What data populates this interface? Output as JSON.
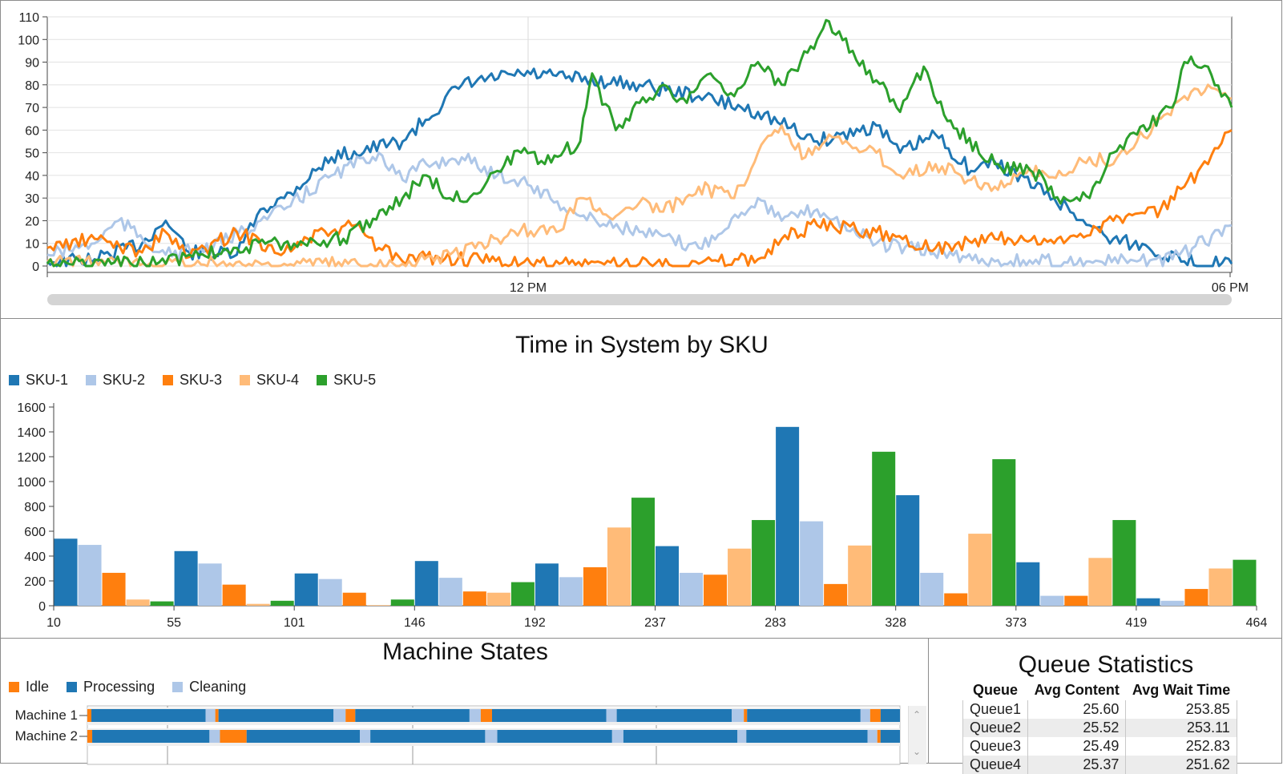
{
  "colors": {
    "SKU-1": "#1f77b4",
    "SKU-2": "#aec7e8",
    "SKU-3": "#ff7f0e",
    "SKU-4": "#ffbb78",
    "SKU-5": "#2ca02c",
    "idle": "#ff7f0e",
    "processing": "#1f77b4",
    "cleaning": "#aec7e8"
  },
  "line_chart": {
    "chart_data": {
      "type": "line",
      "title": "",
      "x_tick_labels": [
        "12 PM",
        "06 PM"
      ],
      "ylim": [
        0,
        110
      ],
      "y_ticks": [
        0,
        10,
        20,
        30,
        40,
        50,
        60,
        70,
        80,
        90,
        100,
        110
      ],
      "series": [
        {
          "name": "SKU-1",
          "x": [
            0,
            4,
            8,
            10,
            12,
            16,
            18,
            20,
            24,
            30,
            35,
            40,
            50,
            55,
            60,
            65,
            70,
            72,
            75,
            78,
            80,
            85,
            88,
            90,
            93,
            96,
            100
          ],
          "y": [
            2,
            3,
            10,
            20,
            6,
            5,
            25,
            30,
            48,
            55,
            80,
            85,
            80,
            75,
            68,
            55,
            62,
            50,
            58,
            42,
            46,
            30,
            18,
            12,
            8,
            2,
            1
          ]
        },
        {
          "name": "SKU-2",
          "x": [
            0,
            4,
            6,
            10,
            14,
            18,
            20,
            24,
            28,
            30,
            32,
            35,
            38,
            40,
            45,
            50,
            55,
            60,
            62,
            65,
            70,
            80,
            88,
            92,
            95,
            100
          ],
          "y": [
            5,
            10,
            20,
            5,
            8,
            20,
            25,
            40,
            50,
            38,
            45,
            48,
            40,
            38,
            22,
            15,
            8,
            30,
            20,
            25,
            10,
            2,
            2,
            2,
            3,
            18
          ]
        },
        {
          "name": "SKU-3",
          "x": [
            0,
            4,
            8,
            10,
            12,
            16,
            20,
            22,
            24,
            26,
            28,
            30,
            32,
            40,
            50,
            55,
            60,
            62,
            65,
            70,
            75,
            80,
            85,
            90,
            94,
            96,
            98,
            100
          ],
          "y": [
            8,
            12,
            6,
            15,
            4,
            15,
            6,
            12,
            15,
            18,
            8,
            2,
            4,
            1,
            1,
            1,
            3,
            12,
            18,
            15,
            8,
            12,
            10,
            20,
            25,
            35,
            45,
            60
          ]
        },
        {
          "name": "SKU-4",
          "x": [
            0,
            10,
            20,
            30,
            34,
            38,
            40,
            43,
            45,
            48,
            50,
            52,
            55,
            58,
            60,
            62,
            64,
            66,
            68,
            70,
            72,
            75,
            78,
            80,
            84,
            86,
            88,
            90,
            92,
            94,
            96,
            98,
            100
          ],
          "y": [
            2,
            1,
            1,
            1,
            5,
            12,
            16,
            15,
            30,
            22,
            28,
            24,
            35,
            30,
            50,
            62,
            48,
            58,
            52,
            50,
            40,
            45,
            38,
            35,
            42,
            40,
            48,
            45,
            55,
            65,
            75,
            80,
            74
          ]
        },
        {
          "name": "SKU-5",
          "x": [
            0,
            10,
            12,
            16,
            20,
            25,
            30,
            32,
            34,
            36,
            38,
            40,
            42,
            45,
            46,
            48,
            50,
            52,
            54,
            56,
            58,
            60,
            62,
            65,
            66,
            68,
            70,
            72,
            74,
            76,
            80,
            84,
            85,
            88,
            90,
            92,
            95,
            96,
            98,
            100
          ],
          "y": [
            1,
            1,
            5,
            8,
            10,
            12,
            30,
            40,
            30,
            32,
            42,
            50,
            45,
            55,
            85,
            60,
            72,
            80,
            72,
            85,
            75,
            90,
            80,
            100,
            108,
            95,
            82,
            68,
            88,
            64,
            45,
            40,
            30,
            30,
            50,
            58,
            70,
            90,
            88,
            70
          ]
        }
      ]
    }
  },
  "bar_chart": {
    "title": "Time in System by SKU",
    "legend": [
      "SKU-1",
      "SKU-2",
      "SKU-3",
      "SKU-4",
      "SKU-5"
    ],
    "chart_data": {
      "type": "bar",
      "title": "Time in System by SKU",
      "xlabel": "",
      "ylabel": "",
      "ylim": [
        0,
        1600
      ],
      "y_ticks": [
        0,
        200,
        400,
        600,
        800,
        1000,
        1200,
        1400,
        1600
      ],
      "x_tick_labels": [
        "10",
        "55",
        "101",
        "146",
        "192",
        "237",
        "283",
        "328",
        "373",
        "419",
        "464"
      ],
      "series_order": [
        "SKU-1",
        "SKU-2",
        "SKU-3",
        "SKU-4",
        "SKU-5"
      ],
      "bars": [
        {
          "sku": "SKU-1",
          "value": 540
        },
        {
          "sku": "SKU-2",
          "value": 490
        },
        {
          "sku": "SKU-3",
          "value": 265
        },
        {
          "sku": "SKU-4",
          "value": 50
        },
        {
          "sku": "SKU-5",
          "value": 35
        },
        {
          "sku": "SKU-1",
          "value": 440
        },
        {
          "sku": "SKU-2",
          "value": 340
        },
        {
          "sku": "SKU-3",
          "value": 170
        },
        {
          "sku": "SKU-4",
          "value": 15
        },
        {
          "sku": "SKU-5",
          "value": 40
        },
        {
          "sku": "SKU-1",
          "value": 260
        },
        {
          "sku": "SKU-2",
          "value": 215
        },
        {
          "sku": "SKU-3",
          "value": 105
        },
        {
          "sku": "SKU-4",
          "value": 5
        },
        {
          "sku": "SKU-5",
          "value": 50
        },
        {
          "sku": "SKU-1",
          "value": 360
        },
        {
          "sku": "SKU-2",
          "value": 225
        },
        {
          "sku": "SKU-3",
          "value": 115
        },
        {
          "sku": "SKU-4",
          "value": 105
        },
        {
          "sku": "SKU-5",
          "value": 190
        },
        {
          "sku": "SKU-1",
          "value": 340
        },
        {
          "sku": "SKU-2",
          "value": 230
        },
        {
          "sku": "SKU-3",
          "value": 310
        },
        {
          "sku": "SKU-4",
          "value": 630
        },
        {
          "sku": "SKU-5",
          "value": 870
        },
        {
          "sku": "SKU-1",
          "value": 480
        },
        {
          "sku": "SKU-2",
          "value": 265
        },
        {
          "sku": "SKU-3",
          "value": 250
        },
        {
          "sku": "SKU-4",
          "value": 460
        },
        {
          "sku": "SKU-5",
          "value": 690
        },
        {
          "sku": "SKU-1",
          "value": 1440
        },
        {
          "sku": "SKU-2",
          "value": 680
        },
        {
          "sku": "SKU-3",
          "value": 175
        },
        {
          "sku": "SKU-4",
          "value": 485
        },
        {
          "sku": "SKU-5",
          "value": 1240
        },
        {
          "sku": "SKU-1",
          "value": 890
        },
        {
          "sku": "SKU-2",
          "value": 265
        },
        {
          "sku": "SKU-3",
          "value": 100
        },
        {
          "sku": "SKU-4",
          "value": 580
        },
        {
          "sku": "SKU-5",
          "value": 1180
        },
        {
          "sku": "SKU-1",
          "value": 350
        },
        {
          "sku": "SKU-2",
          "value": 80
        },
        {
          "sku": "SKU-3",
          "value": 80
        },
        {
          "sku": "SKU-4",
          "value": 385
        },
        {
          "sku": "SKU-5",
          "value": 690
        },
        {
          "sku": "SKU-1",
          "value": 60
        },
        {
          "sku": "SKU-2",
          "value": 40
        },
        {
          "sku": "SKU-3",
          "value": 135
        },
        {
          "sku": "SKU-4",
          "value": 300
        },
        {
          "sku": "SKU-5",
          "value": 370
        }
      ]
    }
  },
  "machine_states": {
    "title": "Machine States",
    "legend": [
      {
        "label": "Idle",
        "key": "idle"
      },
      {
        "label": "Processing",
        "key": "processing"
      },
      {
        "label": "Cleaning",
        "key": "cleaning"
      }
    ],
    "machines": [
      {
        "name": "Machine 1",
        "segments": [
          {
            "s": "idle",
            "d": 0.5
          },
          {
            "s": "processing",
            "d": 14.2
          },
          {
            "s": "cleaning",
            "d": 1.2
          },
          {
            "s": "idle",
            "d": 0.4
          },
          {
            "s": "processing",
            "d": 14.3
          },
          {
            "s": "cleaning",
            "d": 1.5
          },
          {
            "s": "idle",
            "d": 1.2
          },
          {
            "s": "processing",
            "d": 14.2
          },
          {
            "s": "cleaning",
            "d": 1.4
          },
          {
            "s": "idle",
            "d": 1.4
          },
          {
            "s": "processing",
            "d": 14.2
          },
          {
            "s": "cleaning",
            "d": 1.3
          },
          {
            "s": "processing",
            "d": 14.3
          },
          {
            "s": "cleaning",
            "d": 1.5
          },
          {
            "s": "idle",
            "d": 0.4
          },
          {
            "s": "processing",
            "d": 14.1
          },
          {
            "s": "cleaning",
            "d": 1.2
          },
          {
            "s": "idle",
            "d": 1.3
          },
          {
            "s": "processing",
            "d": 2.4
          }
        ]
      },
      {
        "name": "Machine 2",
        "segments": [
          {
            "s": "idle",
            "d": 0.6
          },
          {
            "s": "processing",
            "d": 14.5
          },
          {
            "s": "cleaning",
            "d": 1.3
          },
          {
            "s": "idle",
            "d": 3.3
          },
          {
            "s": "processing",
            "d": 14.0
          },
          {
            "s": "cleaning",
            "d": 1.3
          },
          {
            "s": "processing",
            "d": 14.2
          },
          {
            "s": "cleaning",
            "d": 1.5
          },
          {
            "s": "processing",
            "d": 14.2
          },
          {
            "s": "cleaning",
            "d": 1.4
          },
          {
            "s": "processing",
            "d": 14.1
          },
          {
            "s": "cleaning",
            "d": 1.1
          },
          {
            "s": "processing",
            "d": 15.0
          },
          {
            "s": "cleaning",
            "d": 1.2
          },
          {
            "s": "idle",
            "d": 0.4
          },
          {
            "s": "processing",
            "d": 2.4
          }
        ]
      }
    ]
  },
  "queue_stats": {
    "title": "Queue Statistics",
    "headers": [
      "Queue",
      "Avg Content",
      "Avg Wait Time"
    ],
    "rows": [
      [
        "Queue1",
        "25.60",
        "253.85"
      ],
      [
        "Queue2",
        "25.52",
        "253.11"
      ],
      [
        "Queue3",
        "25.49",
        "252.83"
      ],
      [
        "Queue4",
        "25.37",
        "251.62"
      ]
    ]
  }
}
